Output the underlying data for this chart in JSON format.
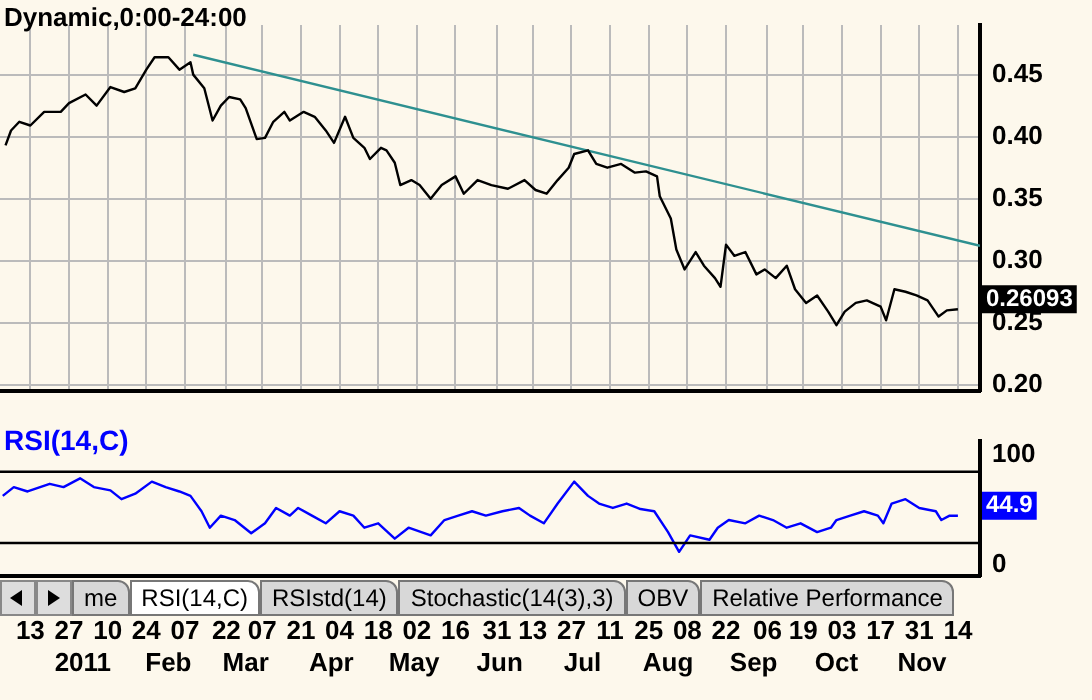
{
  "chart_data": [
    {
      "type": "line",
      "title": "Dynamic,0:00-24:00",
      "xlim": [
        "2010-12-02",
        "2011-11-22"
      ],
      "ylim": [
        0.195,
        0.49
      ],
      "xticks": [
        {
          "value": "2010-12-13",
          "label": null
        },
        {
          "value": "2010-12-27",
          "label": null
        },
        {
          "value": "2011-01-10",
          "label": null
        },
        {
          "value": "2011-01-24",
          "label": null
        },
        {
          "value": "2011-02-07",
          "label": null
        },
        {
          "value": "2011-02-22",
          "label": null
        },
        {
          "value": "2011-03-07",
          "label": null
        },
        {
          "value": "2011-03-21",
          "label": null
        },
        {
          "value": "2011-04-04",
          "label": null
        },
        {
          "value": "2011-04-18",
          "label": null
        },
        {
          "value": "2011-05-02",
          "label": null
        },
        {
          "value": "2011-05-16",
          "label": null
        },
        {
          "value": "2011-05-31",
          "label": null
        },
        {
          "value": "2011-06-13",
          "label": null
        },
        {
          "value": "2011-06-27",
          "label": null
        },
        {
          "value": "2011-07-11",
          "label": null
        },
        {
          "value": "2011-07-25",
          "label": null
        },
        {
          "value": "2011-08-08",
          "label": null
        },
        {
          "value": "2011-08-22",
          "label": null
        },
        {
          "value": "2011-09-06",
          "label": null
        },
        {
          "value": "2011-09-19",
          "label": null
        },
        {
          "value": "2011-10-03",
          "label": null
        },
        {
          "value": "2011-10-17",
          "label": null
        },
        {
          "value": "2011-10-31",
          "label": null
        },
        {
          "value": "2011-11-14",
          "label": null
        }
      ],
      "yticks": [
        {
          "value": 0.2,
          "label": "0.20"
        },
        0.25,
        {
          "value": 0.3,
          "label": "0.30"
        },
        0.35,
        {
          "value": 0.4,
          "label": "0.40"
        },
        0.45
      ],
      "tick_labels": "y",
      "grid": true,
      "series": [
        {
          "color": "#000000",
          "x": [
            "2010-12-04",
            "2010-12-06",
            "2010-12-09",
            "2010-12-13",
            "2010-12-18",
            "2010-12-24",
            "2010-12-27",
            "2011-01-02",
            "2011-01-06",
            "2011-01-11",
            "2011-01-16",
            "2011-01-20",
            "2011-01-24",
            "2011-01-27",
            "2011-02-01",
            "2011-02-05",
            "2011-02-09",
            "2011-02-10",
            "2011-02-14",
            "2011-02-17",
            "2011-02-20",
            "2011-02-23",
            "2011-02-27",
            "2011-03-01",
            "2011-03-05",
            "2011-03-08",
            "2011-03-11",
            "2011-03-15",
            "2011-03-17",
            "2011-03-22",
            "2011-03-26",
            "2011-03-30",
            "2011-04-02",
            "2011-04-06",
            "2011-04-09",
            "2011-04-13",
            "2011-04-15",
            "2011-04-19",
            "2011-04-21",
            "2011-04-24",
            "2011-04-26",
            "2011-04-30",
            "2011-05-03",
            "2011-05-07",
            "2011-05-11",
            "2011-05-16",
            "2011-05-19",
            "2011-05-24",
            "2011-05-29",
            "2011-06-04",
            "2011-06-10",
            "2011-06-14",
            "2011-06-18",
            "2011-06-22",
            "2011-06-26",
            "2011-06-28",
            "2011-07-03",
            "2011-07-06",
            "2011-07-10",
            "2011-07-15",
            "2011-07-20",
            "2011-07-24",
            "2011-07-28",
            "2011-07-29",
            "2011-08-02",
            "2011-08-04",
            "2011-08-07",
            "2011-08-11",
            "2011-08-14",
            "2011-08-18",
            "2011-08-20",
            "2011-08-22",
            "2011-08-25",
            "2011-08-29",
            "2011-09-02",
            "2011-09-05",
            "2011-09-09",
            "2011-09-13",
            "2011-09-16",
            "2011-09-20",
            "2011-09-24",
            "2011-09-28",
            "2011-10-01",
            "2011-10-04",
            "2011-10-08",
            "2011-10-12",
            "2011-10-17",
            "2011-10-19",
            "2011-10-22",
            "2011-10-26",
            "2011-10-30",
            "2011-11-03",
            "2011-11-07",
            "2011-11-10",
            "2011-11-14"
          ],
          "values": [
            0.393,
            0.405,
            0.412,
            0.409,
            0.42,
            0.42,
            0.427,
            0.434,
            0.425,
            0.44,
            0.436,
            0.439,
            0.454,
            0.464,
            0.464,
            0.454,
            0.46,
            0.45,
            0.439,
            0.413,
            0.425,
            0.432,
            0.43,
            0.423,
            0.398,
            0.399,
            0.412,
            0.42,
            0.413,
            0.42,
            0.416,
            0.405,
            0.395,
            0.416,
            0.399,
            0.391,
            0.382,
            0.391,
            0.389,
            0.379,
            0.361,
            0.365,
            0.361,
            0.35,
            0.361,
            0.368,
            0.354,
            0.365,
            0.361,
            0.358,
            0.365,
            0.357,
            0.354,
            0.365,
            0.375,
            0.386,
            0.389,
            0.378,
            0.375,
            0.378,
            0.371,
            0.372,
            0.368,
            0.352,
            0.334,
            0.309,
            0.293,
            0.307,
            0.296,
            0.286,
            0.279,
            0.313,
            0.304,
            0.307,
            0.289,
            0.293,
            0.286,
            0.296,
            0.277,
            0.266,
            0.272,
            0.259,
            0.248,
            0.259,
            0.266,
            0.268,
            0.263,
            0.252,
            0.277,
            0.275,
            0.272,
            0.268,
            0.255,
            0.26,
            0.26093
          ],
          "value_labels": [
            null,
            null,
            null,
            null,
            null,
            null,
            null,
            null,
            null,
            null,
            null,
            null,
            null,
            null,
            null,
            null,
            null,
            null,
            null,
            null,
            null,
            null,
            null,
            null,
            null,
            null,
            null,
            null,
            null,
            null,
            null,
            null,
            null,
            null,
            null,
            null,
            null,
            null,
            null,
            null,
            null,
            null,
            null,
            null,
            null,
            null,
            null,
            null,
            null,
            null,
            null,
            null,
            null,
            null,
            null,
            null,
            null,
            null,
            null,
            null,
            null,
            null,
            null,
            null,
            null,
            null,
            null,
            null,
            null,
            null,
            null,
            null,
            null,
            null,
            null,
            null,
            null,
            null,
            null,
            null,
            null,
            null,
            null,
            null,
            null,
            null,
            null,
            null,
            null,
            null,
            null,
            null,
            null,
            null,
            "0.26093"
          ]
        },
        {
          "type": "line",
          "color": "#2e9090",
          "x": [
            "2011-02-10",
            "2011-11-22"
          ],
          "values": [
            0.466,
            0.312
          ]
        }
      ]
    },
    {
      "type": "line",
      "title": "RSI(14,C)",
      "xlim": [
        "2010-12-02",
        "2011-11-22"
      ],
      "ylim": [
        -10,
        113
      ],
      "xticks": [
        {
          "value": "2010-12-13",
          "label": "13"
        },
        {
          "value": "2010-12-27",
          "label": "27"
        },
        {
          "value": "2011-01-10",
          "label": "10"
        },
        {
          "value": "2011-01-24",
          "label": "24"
        },
        {
          "value": "2011-02-07",
          "label": "07"
        },
        {
          "value": "2011-02-22",
          "label": "22"
        },
        {
          "value": "2011-03-07",
          "label": "07"
        },
        {
          "value": "2011-03-21",
          "label": "21"
        },
        {
          "value": "2011-04-04",
          "label": "04"
        },
        {
          "value": "2011-04-18",
          "label": "18"
        },
        {
          "value": "2011-05-02",
          "label": "02"
        },
        {
          "value": "2011-05-16",
          "label": "16"
        },
        {
          "value": "2011-05-31",
          "label": "31"
        },
        {
          "value": "2011-06-13",
          "label": "13"
        },
        {
          "value": "2011-06-27",
          "label": "27"
        },
        {
          "value": "2011-07-11",
          "label": "11"
        },
        {
          "value": "2011-07-25",
          "label": "25"
        },
        {
          "value": "2011-08-08",
          "label": "08"
        },
        {
          "value": "2011-08-22",
          "label": "22"
        },
        {
          "value": "2011-09-06",
          "label": "06"
        },
        {
          "value": "2011-09-19",
          "label": "19"
        },
        {
          "value": "2011-10-03",
          "label": "03"
        },
        {
          "value": "2011-10-17",
          "label": "17"
        },
        {
          "value": "2011-10-31",
          "label": "31"
        },
        {
          "value": "2011-11-14",
          "label": "14"
        }
      ],
      "x2lim": [
        "2010-12-02",
        "2011-11-22"
      ],
      "x2ticks": [
        {
          "value": "2011-01-01",
          "label": "2011"
        },
        {
          "value": "2011-02-01",
          "label": "Feb"
        },
        {
          "value": "2011-03-01",
          "label": "Mar"
        },
        {
          "value": "2011-04-01",
          "label": "Apr"
        },
        {
          "value": "2011-05-01",
          "label": "May"
        },
        {
          "value": "2011-06-01",
          "label": "Jun"
        },
        {
          "value": "2011-07-01",
          "label": "Jul"
        },
        {
          "value": "2011-08-01",
          "label": "Aug"
        },
        {
          "value": "2011-09-01",
          "label": "Sep"
        },
        {
          "value": "2011-10-01",
          "label": "Oct"
        },
        {
          "value": "2011-11-01",
          "label": "Nov"
        }
      ],
      "yticks": [
        0,
        100
      ],
      "ref_lines": [
        {
          "axis": "y",
          "value": 85,
          "color": "#000000"
        },
        {
          "axis": "y",
          "value": 20,
          "color": "#000000"
        }
      ],
      "annotations": [
        "me",
        "RSI(14,C)",
        "RSIstd(14)",
        "Stochastic(14(3),3)",
        "OBV",
        "Relative Performance"
      ],
      "series": [
        {
          "color": "#0000ff",
          "x": [
            "2010-12-03",
            "2010-12-07",
            "2010-12-12",
            "2010-12-20",
            "2010-12-25",
            "2010-12-31",
            "2011-01-05",
            "2011-01-11",
            "2011-01-15",
            "2011-01-20",
            "2011-01-26",
            "2011-01-31",
            "2011-02-05",
            "2011-02-09",
            "2011-02-13",
            "2011-02-16",
            "2011-02-20",
            "2011-02-25",
            "2011-03-03",
            "2011-03-08",
            "2011-03-12",
            "2011-03-17",
            "2011-03-20",
            "2011-03-25",
            "2011-03-30",
            "2011-04-04",
            "2011-04-09",
            "2011-04-13",
            "2011-04-18",
            "2011-04-24",
            "2011-04-29",
            "2011-05-07",
            "2011-05-12",
            "2011-05-17",
            "2011-05-22",
            "2011-05-27",
            "2011-06-02",
            "2011-06-08",
            "2011-06-12",
            "2011-06-17",
            "2011-06-22",
            "2011-06-28",
            "2011-07-03",
            "2011-07-07",
            "2011-07-12",
            "2011-07-17",
            "2011-07-22",
            "2011-07-27",
            "2011-08-01",
            "2011-08-05",
            "2011-08-09",
            "2011-08-16",
            "2011-08-19",
            "2011-08-23",
            "2011-08-29",
            "2011-09-03",
            "2011-09-08",
            "2011-09-13",
            "2011-09-18",
            "2011-09-24",
            "2011-09-29",
            "2011-10-01",
            "2011-10-06",
            "2011-10-11",
            "2011-10-16",
            "2011-10-18",
            "2011-10-21",
            "2011-10-26",
            "2011-10-31",
            "2011-11-06",
            "2011-11-08",
            "2011-11-11",
            "2011-11-14"
          ],
          "values": [
            63,
            71,
            67,
            74,
            71,
            79,
            71,
            68,
            60,
            65,
            76,
            71,
            67,
            63,
            49,
            34,
            45,
            41,
            29,
            38,
            52,
            45,
            52,
            45,
            38,
            49,
            45,
            34,
            38,
            24,
            34,
            27,
            41,
            45,
            49,
            45,
            49,
            52,
            45,
            38,
            56,
            76,
            63,
            56,
            52,
            56,
            51,
            49,
            30,
            12,
            27,
            23,
            34,
            41,
            38,
            45,
            41,
            34,
            38,
            30,
            34,
            41,
            45,
            49,
            45,
            38,
            56,
            60,
            52,
            49,
            41,
            45,
            44.9
          ],
          "value_labels": [
            null,
            null,
            null,
            null,
            null,
            null,
            null,
            null,
            null,
            null,
            null,
            null,
            null,
            null,
            null,
            null,
            null,
            null,
            null,
            null,
            null,
            null,
            null,
            null,
            null,
            null,
            null,
            null,
            null,
            null,
            null,
            null,
            null,
            null,
            null,
            null,
            null,
            null,
            null,
            null,
            null,
            null,
            null,
            null,
            null,
            null,
            null,
            null,
            null,
            null,
            null,
            null,
            null,
            null,
            null,
            null,
            null,
            null,
            null,
            null,
            null,
            null,
            null,
            null,
            null,
            null,
            null,
            null,
            null,
            null,
            null,
            null,
            "44.9"
          ]
        }
      ]
    }
  ]
}
